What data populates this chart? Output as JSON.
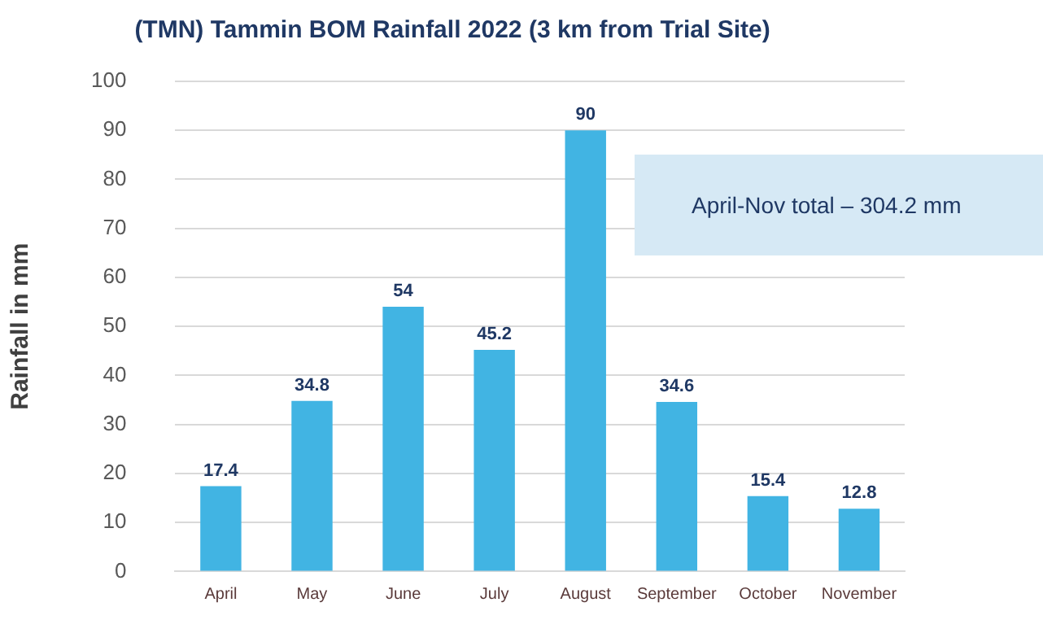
{
  "chart_data": {
    "type": "bar",
    "title": "(TMN) Tammin BOM Rainfall 2022 (3 km from Trial Site)",
    "ylabel": "Rainfall in mm",
    "categories": [
      "April",
      "May",
      "June",
      "July",
      "August",
      "September",
      "October",
      "November"
    ],
    "values": [
      17.4,
      34.8,
      54,
      45.2,
      90,
      34.6,
      15.4,
      12.8
    ],
    "color": "#41b4e3",
    "ylim": [
      0,
      100
    ],
    "yticks": [
      0,
      10,
      20,
      30,
      40,
      50,
      60,
      70,
      80,
      90,
      100
    ],
    "grid": "y",
    "data_labels": true,
    "annotations": [
      "April-Nov total – 304.2 mm"
    ]
  }
}
